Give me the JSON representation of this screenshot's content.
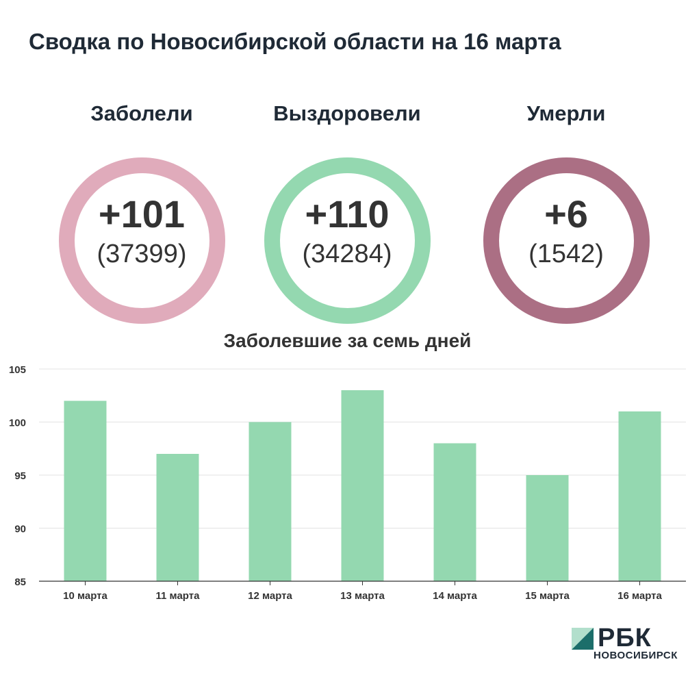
{
  "title": "Сводка по Новосибирской области на 16 марта",
  "stats": [
    {
      "label": "Заболели",
      "main": "+101",
      "sub": "(37399)",
      "color": "#e0abbb"
    },
    {
      "label": "Выздоровели",
      "main": "+110",
      "sub": "(34284)",
      "color": "#94d8b0"
    },
    {
      "label": "Умерли",
      "main": "+6",
      "sub": "(1542)",
      "color": "#ab6f84"
    }
  ],
  "chart_data": {
    "type": "bar",
    "title": "Заболевшие за семь дней",
    "categories": [
      "10 марта",
      "11 марта",
      "12 марта",
      "13 марта",
      "14 марта",
      "15 марта",
      "16 марта"
    ],
    "values": [
      102,
      97,
      100,
      103,
      98,
      95,
      101
    ],
    "yticks": [
      85,
      90,
      95,
      100,
      105
    ],
    "ylim": [
      85,
      105
    ],
    "grid": true,
    "bar_color": "#94d8b0"
  },
  "logo": {
    "text": "РБК",
    "sub": "НОВОСИБИРСК"
  }
}
